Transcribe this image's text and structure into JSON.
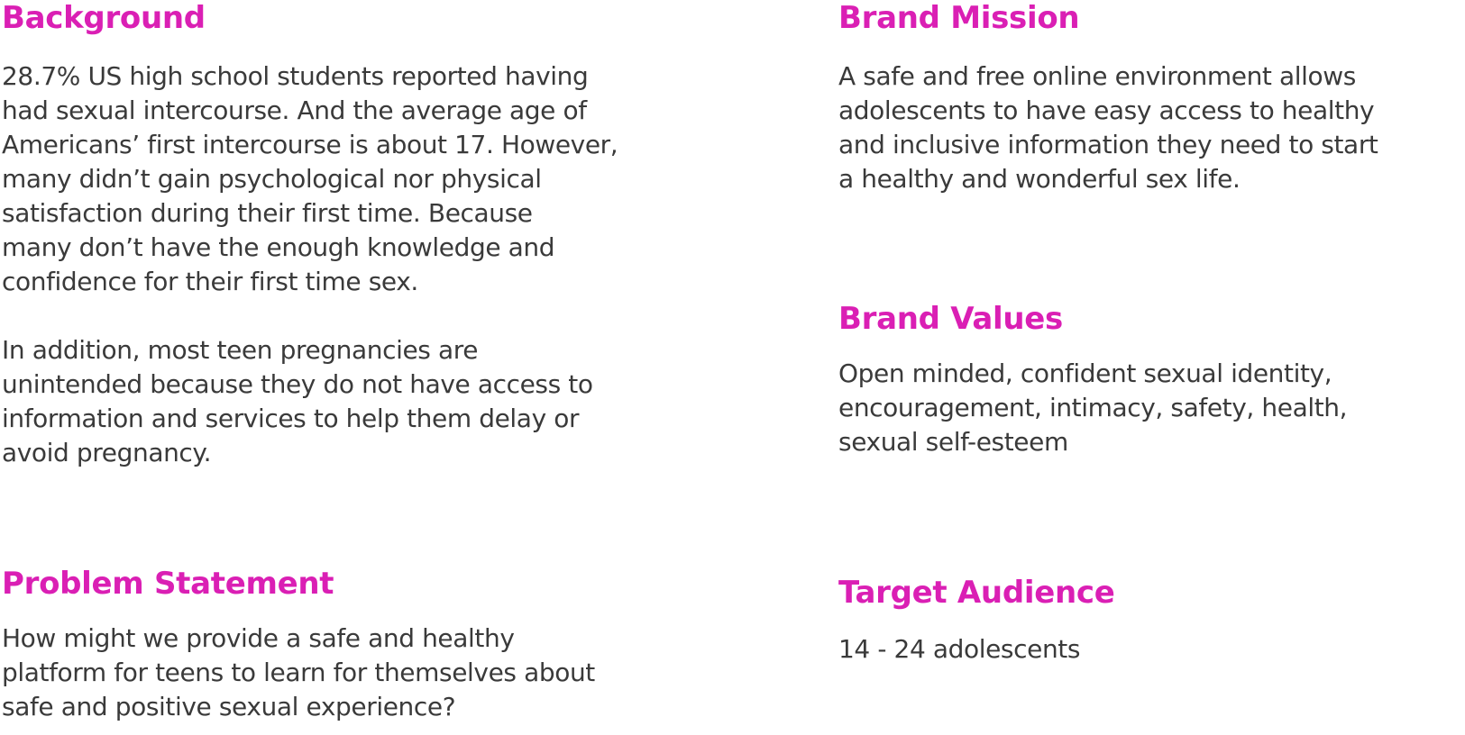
{
  "theme": {
    "heading_color": "#DA1FB4",
    "text_color": "#3A3A3A"
  },
  "background": {
    "title": "Background",
    "para1": [
      "28.7% US high school students reported having",
      "had sexual intercourse. And the average age of",
      "Americans’ first intercourse is about 17. However,",
      "many didn’t gain psychological nor physical",
      "satisfaction during their first time. Because",
      "many don’t have the enough knowledge and",
      "confidence for their first time sex."
    ],
    "para2": [
      "In addition, most teen pregnancies are",
      "unintended because they do not have access to",
      "information and services to help them delay or",
      "avoid pregnancy."
    ]
  },
  "problem_statement": {
    "title": "Problem Statement",
    "lines": [
      "How might we provide a safe and healthy",
      "platform for teens to learn for themselves about",
      "safe and positive sexual experience?"
    ]
  },
  "brand_mission": {
    "title": "Brand Mission",
    "lines": [
      "A safe and free online environment allows",
      "adolescents to have easy access to healthy",
      "and inclusive information they need to start",
      "a healthy and wonderful sex life."
    ]
  },
  "brand_values": {
    "title": "Brand Values",
    "lines": [
      "Open minded, confident sexual identity,",
      "encouragement, intimacy, safety, health,",
      "sexual self-esteem"
    ]
  },
  "target_audience": {
    "title": "Target Audience",
    "lines": [
      "14 - 24 adolescents"
    ]
  }
}
